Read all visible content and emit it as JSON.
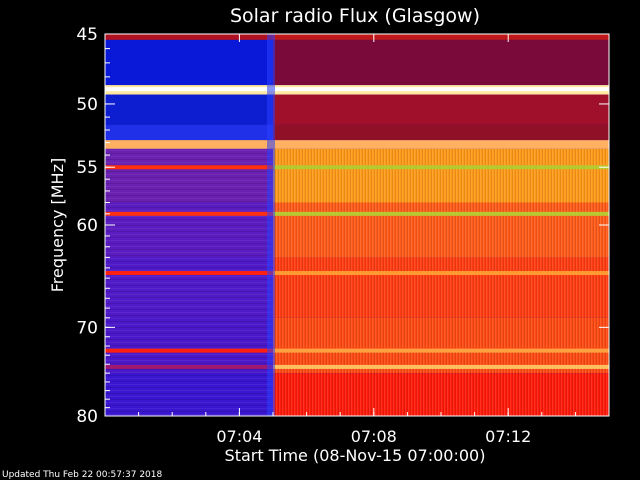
{
  "updated_text": "Updated Thu Feb 22 00:57:37 2018",
  "chart_data": {
    "type": "heatmap",
    "title": "Solar radio Flux (Glasgow)",
    "xlabel": "Start Time (08-Nov-15 07:00:00)",
    "ylabel": "Frequency [MHz]",
    "x_range_minutes": [
      0,
      15
    ],
    "y_range_mhz": [
      45,
      80
    ],
    "y_scale": "log",
    "x_ticks": [
      {
        "minute": 4,
        "label": "07:04"
      },
      {
        "minute": 8,
        "label": "07:08"
      },
      {
        "minute": 12,
        "label": "07:12"
      }
    ],
    "y_ticks": [
      {
        "mhz": 45,
        "label": "45"
      },
      {
        "mhz": 50,
        "label": "50"
      },
      {
        "mhz": 55,
        "label": "55"
      },
      {
        "mhz": 60,
        "label": "60"
      },
      {
        "mhz": 70,
        "label": "70"
      },
      {
        "mhz": 80,
        "label": "80"
      }
    ],
    "transition_minute": 5.0,
    "colors": {
      "background": "#000000",
      "axes": "#ffffff",
      "low_band": "#5a1cc6",
      "low_band_top": "#0b1be0",
      "high_band": "#ff3b10",
      "hot_band": "#ffa020",
      "interference": "#ffe9a0",
      "green_line": "#b8c830"
    },
    "bands": [
      {
        "from_mhz": 45,
        "to_mhz": 45.4,
        "before": "#b01020",
        "after": "#c01818"
      },
      {
        "from_mhz": 45.4,
        "to_mhz": 48.6,
        "before": "#0a18d8",
        "after": "#7a0a3a"
      },
      {
        "from_mhz": 48.6,
        "to_mhz": 49.3,
        "before": "#ffe9a0",
        "after": "#ffe9a0"
      },
      {
        "from_mhz": 49.3,
        "to_mhz": 51.6,
        "before": "#0d1ed0",
        "after": "#a0102a"
      },
      {
        "from_mhz": 51.6,
        "to_mhz": 52.8,
        "before": "#2030e8",
        "after": "#901028"
      },
      {
        "from_mhz": 52.8,
        "to_mhz": 53.5,
        "before": "#ffb060",
        "after": "#ffb060"
      },
      {
        "from_mhz": 53.5,
        "to_mhz": 58.0,
        "before": "#6a20b0",
        "after": "#ff9a18"
      },
      {
        "from_mhz": 58.0,
        "to_mhz": 63.0,
        "before": "#5a1cc0",
        "after": "#ff5a18"
      },
      {
        "from_mhz": 63.0,
        "to_mhz": 69.0,
        "before": "#501ac8",
        "after": "#ff3c12"
      },
      {
        "from_mhz": 69.0,
        "to_mhz": 75.0,
        "before": "#4a18c8",
        "after": "#ff4a14"
      },
      {
        "from_mhz": 75.0,
        "to_mhz": 80.0,
        "before": "#3a16d0",
        "after": "#ff1a0a"
      }
    ],
    "lines": [
      {
        "mhz": 48.9,
        "before": "#ffffff",
        "after": "#ffffff"
      },
      {
        "mhz": 55.0,
        "before": "#ff3010",
        "after": "#b8c830"
      },
      {
        "mhz": 59.0,
        "before": "#ff3010",
        "after": "#b8c830"
      },
      {
        "mhz": 64.5,
        "before": "#ff2010",
        "after": "#ff9a30"
      },
      {
        "mhz": 72.5,
        "before": "#ff2010",
        "after": "#ffa040"
      },
      {
        "mhz": 74.3,
        "before": "#a01870",
        "after": "#ffc060"
      }
    ]
  }
}
